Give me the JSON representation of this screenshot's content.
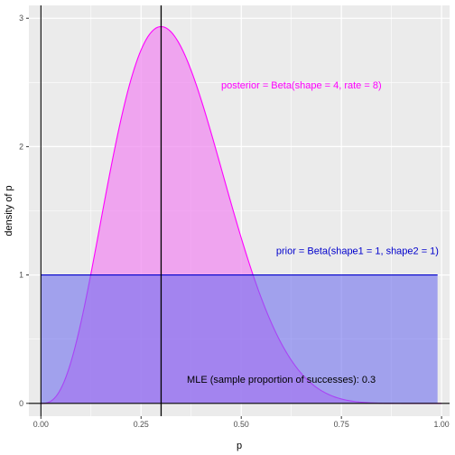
{
  "chart_data": {
    "type": "area",
    "title": "",
    "xlabel": "p",
    "ylabel": "density of p",
    "xlim": [
      -0.03,
      1.02
    ],
    "ylim": [
      -0.1,
      3.1
    ],
    "x_ticks": [
      0,
      0.25,
      0.5,
      0.75,
      1
    ],
    "x_tick_labels": [
      "0.00",
      "0.25",
      "0.50",
      "0.75",
      "1.00"
    ],
    "y_ticks": [
      0,
      1,
      2,
      3
    ],
    "y_tick_labels": [
      "0",
      "1",
      "2",
      "3"
    ],
    "grid": true,
    "series": [
      {
        "name": "posterior",
        "distribution": "beta",
        "alpha": 4,
        "beta": 8,
        "x_range": [
          0,
          1
        ],
        "peak_x": 0.3,
        "peak_y": 2.93,
        "fill_color": "#f08cf0",
        "fill_opacity": 0.75,
        "line_color": "#ff00ff"
      },
      {
        "name": "prior",
        "distribution": "beta",
        "alpha": 1,
        "beta": 1,
        "x_range": [
          0,
          0.99
        ],
        "value": 1,
        "fill_color": "#6f6fef",
        "fill_opacity": 0.6,
        "line_color": "#0000cc"
      }
    ],
    "vlines": [
      {
        "name": "mle",
        "x": 0.3,
        "color": "#000000"
      }
    ],
    "reference_lines": [
      {
        "name": "x-zero",
        "x": 0,
        "color": "#000000"
      },
      {
        "name": "y-zero",
        "y": 0,
        "color": "#000000"
      }
    ],
    "annotations": [
      {
        "name": "posterior-label",
        "text": "posterior = Beta(shape = 4, rate = 8)",
        "x": 0.65,
        "y": 2.48,
        "color": "#ff00ff"
      },
      {
        "name": "prior-label",
        "text": "prior = Beta(shape1 = 1, shape2 = 1)",
        "x": 0.79,
        "y": 1.19,
        "color": "#0000cc"
      },
      {
        "name": "mle-label",
        "text": "MLE (sample proportion of successes): 0.3",
        "x": 0.6,
        "y": 0.19,
        "color": "#000000"
      }
    ],
    "panel_background": "#ebebeb",
    "grid_major_color": "#ffffff"
  }
}
